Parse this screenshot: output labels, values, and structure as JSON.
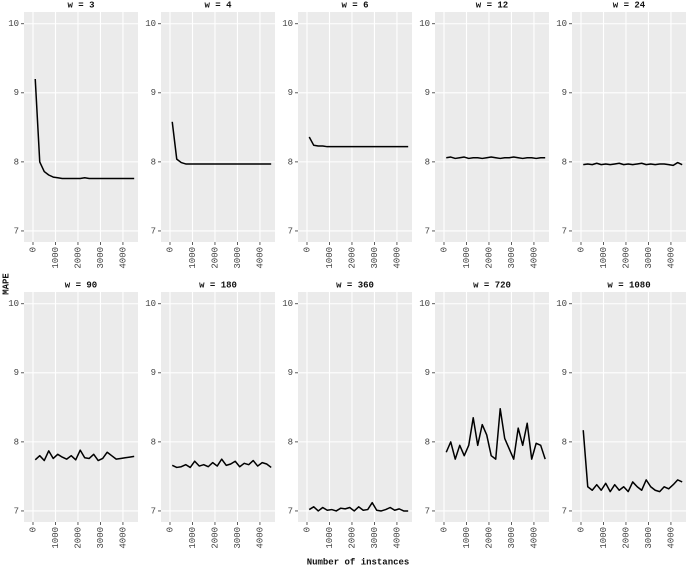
{
  "ylabel": "MAPE",
  "xlabel": "Number of instances",
  "chart_data": [
    {
      "type": "line",
      "title": "w = 3",
      "x": [
        100,
        300,
        500,
        700,
        900,
        1100,
        1300,
        1500,
        1700,
        1900,
        2100,
        2300,
        2500,
        2700,
        2900,
        3100,
        3300,
        3500,
        3700,
        3900,
        4100,
        4300,
        4500
      ],
      "values": [
        9.2,
        8.0,
        7.86,
        7.81,
        7.78,
        7.77,
        7.76,
        7.76,
        7.76,
        7.76,
        7.76,
        7.77,
        7.76,
        7.76,
        7.76,
        7.76,
        7.76,
        7.76,
        7.76,
        7.76,
        7.76,
        7.76,
        7.76
      ],
      "color": "#000000",
      "xlim": [
        -400,
        4670
      ],
      "ylim": [
        6.84,
        10.17
      ],
      "xticks": [
        0,
        1000,
        2000,
        3000,
        4000
      ],
      "yticks": [
        7,
        8,
        9,
        10
      ],
      "grid": true
    },
    {
      "type": "line",
      "title": "w = 4",
      "x": [
        100,
        300,
        500,
        700,
        900,
        1100,
        1300,
        1500,
        1700,
        1900,
        2100,
        2300,
        2500,
        2700,
        2900,
        3100,
        3300,
        3500,
        3700,
        3900,
        4100,
        4300,
        4500
      ],
      "values": [
        8.58,
        8.04,
        7.99,
        7.97,
        7.97,
        7.97,
        7.97,
        7.97,
        7.97,
        7.97,
        7.97,
        7.97,
        7.97,
        7.97,
        7.97,
        7.97,
        7.97,
        7.97,
        7.97,
        7.97,
        7.97,
        7.97,
        7.97
      ],
      "color": "#000000",
      "xlim": [
        -400,
        4670
      ],
      "ylim": [
        6.84,
        10.17
      ],
      "xticks": [
        0,
        1000,
        2000,
        3000,
        4000
      ],
      "yticks": [
        7,
        8,
        9,
        10
      ],
      "grid": true
    },
    {
      "type": "line",
      "title": "w = 6",
      "x": [
        100,
        300,
        500,
        700,
        900,
        1100,
        1300,
        1500,
        1700,
        1900,
        2100,
        2300,
        2500,
        2700,
        2900,
        3100,
        3300,
        3500,
        3700,
        3900,
        4100,
        4300,
        4500
      ],
      "values": [
        8.36,
        8.24,
        8.23,
        8.23,
        8.22,
        8.22,
        8.22,
        8.22,
        8.22,
        8.22,
        8.22,
        8.22,
        8.22,
        8.22,
        8.22,
        8.22,
        8.22,
        8.22,
        8.22,
        8.22,
        8.22,
        8.22,
        8.22
      ],
      "color": "#000000",
      "xlim": [
        -400,
        4670
      ],
      "ylim": [
        6.84,
        10.17
      ],
      "xticks": [
        0,
        1000,
        2000,
        3000,
        4000
      ],
      "yticks": [
        7,
        8,
        9,
        10
      ],
      "grid": true
    },
    {
      "type": "line",
      "title": "w = 12",
      "x": [
        100,
        300,
        500,
        700,
        900,
        1100,
        1300,
        1500,
        1700,
        1900,
        2100,
        2300,
        2500,
        2700,
        2900,
        3100,
        3300,
        3500,
        3700,
        3900,
        4100,
        4300,
        4500
      ],
      "values": [
        8.06,
        8.07,
        8.05,
        8.06,
        8.07,
        8.05,
        8.06,
        8.06,
        8.05,
        8.06,
        8.07,
        8.06,
        8.05,
        8.06,
        8.06,
        8.07,
        8.06,
        8.05,
        8.06,
        8.06,
        8.05,
        8.06,
        8.06
      ],
      "color": "#000000",
      "xlim": [
        -400,
        4670
      ],
      "ylim": [
        6.84,
        10.17
      ],
      "xticks": [
        0,
        1000,
        2000,
        3000,
        4000
      ],
      "yticks": [
        7,
        8,
        9,
        10
      ],
      "grid": true
    },
    {
      "type": "line",
      "title": "w = 24",
      "x": [
        100,
        300,
        500,
        700,
        900,
        1100,
        1300,
        1500,
        1700,
        1900,
        2100,
        2300,
        2500,
        2700,
        2900,
        3100,
        3300,
        3500,
        3700,
        3900,
        4100,
        4300,
        4500
      ],
      "values": [
        7.96,
        7.97,
        7.96,
        7.98,
        7.96,
        7.97,
        7.96,
        7.97,
        7.98,
        7.96,
        7.97,
        7.96,
        7.97,
        7.98,
        7.96,
        7.97,
        7.96,
        7.97,
        7.97,
        7.96,
        7.95,
        7.99,
        7.96
      ],
      "color": "#000000",
      "xlim": [
        -400,
        4670
      ],
      "ylim": [
        6.84,
        10.17
      ],
      "xticks": [
        0,
        1000,
        2000,
        3000,
        4000
      ],
      "yticks": [
        7,
        8,
        9,
        10
      ],
      "grid": true
    },
    {
      "type": "line",
      "title": "w = 90",
      "x": [
        100,
        300,
        500,
        700,
        900,
        1100,
        1300,
        1500,
        1700,
        1900,
        2100,
        2300,
        2500,
        2700,
        2900,
        3100,
        3300,
        3500,
        3700,
        3900,
        4100,
        4300,
        4500
      ],
      "values": [
        7.74,
        7.8,
        7.73,
        7.87,
        7.76,
        7.82,
        7.78,
        7.75,
        7.8,
        7.74,
        7.88,
        7.77,
        7.76,
        7.82,
        7.73,
        7.76,
        7.85,
        7.8,
        7.75,
        7.76,
        7.77,
        7.78,
        7.79
      ],
      "color": "#000000",
      "xlim": [
        -400,
        4670
      ],
      "ylim": [
        6.84,
        10.17
      ],
      "xticks": [
        0,
        1000,
        2000,
        3000,
        4000
      ],
      "yticks": [
        7,
        8,
        9,
        10
      ],
      "grid": true
    },
    {
      "type": "line",
      "title": "w = 180",
      "x": [
        100,
        300,
        500,
        700,
        900,
        1100,
        1300,
        1500,
        1700,
        1900,
        2100,
        2300,
        2500,
        2700,
        2900,
        3100,
        3300,
        3500,
        3700,
        3900,
        4100,
        4300,
        4500
      ],
      "values": [
        7.66,
        7.63,
        7.64,
        7.67,
        7.63,
        7.72,
        7.65,
        7.67,
        7.64,
        7.7,
        7.65,
        7.75,
        7.66,
        7.68,
        7.72,
        7.64,
        7.69,
        7.67,
        7.73,
        7.65,
        7.7,
        7.68,
        7.63
      ],
      "color": "#000000",
      "xlim": [
        -400,
        4670
      ],
      "ylim": [
        6.84,
        10.17
      ],
      "xticks": [
        0,
        1000,
        2000,
        3000,
        4000
      ],
      "yticks": [
        7,
        8,
        9,
        10
      ],
      "grid": true
    },
    {
      "type": "line",
      "title": "w = 360",
      "x": [
        100,
        300,
        500,
        700,
        900,
        1100,
        1300,
        1500,
        1700,
        1900,
        2100,
        2300,
        2500,
        2700,
        2900,
        3100,
        3300,
        3500,
        3700,
        3900,
        4100,
        4300,
        4500
      ],
      "values": [
        7.02,
        7.06,
        7.0,
        7.05,
        7.01,
        7.02,
        7.0,
        7.04,
        7.03,
        7.05,
        7.0,
        7.06,
        7.01,
        7.02,
        7.12,
        7.01,
        7.0,
        7.02,
        7.05,
        7.01,
        7.03,
        7.0,
        7.0
      ],
      "color": "#000000",
      "xlim": [
        -400,
        4670
      ],
      "ylim": [
        6.84,
        10.17
      ],
      "xticks": [
        0,
        1000,
        2000,
        3000,
        4000
      ],
      "yticks": [
        7,
        8,
        9,
        10
      ],
      "grid": true
    },
    {
      "type": "line",
      "title": "w = 720",
      "x": [
        100,
        300,
        500,
        700,
        900,
        1100,
        1300,
        1500,
        1700,
        1900,
        2100,
        2300,
        2500,
        2700,
        2900,
        3100,
        3300,
        3500,
        3700,
        3900,
        4100,
        4300,
        4500
      ],
      "values": [
        7.85,
        8.0,
        7.75,
        7.95,
        7.8,
        7.95,
        8.35,
        7.95,
        8.25,
        8.1,
        7.8,
        7.75,
        8.48,
        8.05,
        7.9,
        7.75,
        8.2,
        7.95,
        8.27,
        7.75,
        7.98,
        7.95,
        7.75
      ],
      "color": "#000000",
      "xlim": [
        -400,
        4670
      ],
      "ylim": [
        6.84,
        10.17
      ],
      "xticks": [
        0,
        1000,
        2000,
        3000,
        4000
      ],
      "yticks": [
        7,
        8,
        9,
        10
      ],
      "grid": true
    },
    {
      "type": "line",
      "title": "w = 1080",
      "x": [
        100,
        300,
        500,
        700,
        900,
        1100,
        1300,
        1500,
        1700,
        1900,
        2100,
        2300,
        2500,
        2700,
        2900,
        3100,
        3300,
        3500,
        3700,
        3900,
        4100,
        4300,
        4500
      ],
      "values": [
        8.17,
        7.35,
        7.3,
        7.38,
        7.3,
        7.4,
        7.28,
        7.38,
        7.3,
        7.35,
        7.28,
        7.42,
        7.35,
        7.3,
        7.45,
        7.35,
        7.3,
        7.28,
        7.35,
        7.32,
        7.38,
        7.45,
        7.42
      ],
      "color": "#000000",
      "xlim": [
        -400,
        4670
      ],
      "ylim": [
        6.84,
        10.17
      ],
      "xticks": [
        0,
        1000,
        2000,
        3000,
        4000
      ],
      "yticks": [
        7,
        8,
        9,
        10
      ],
      "grid": true
    }
  ]
}
